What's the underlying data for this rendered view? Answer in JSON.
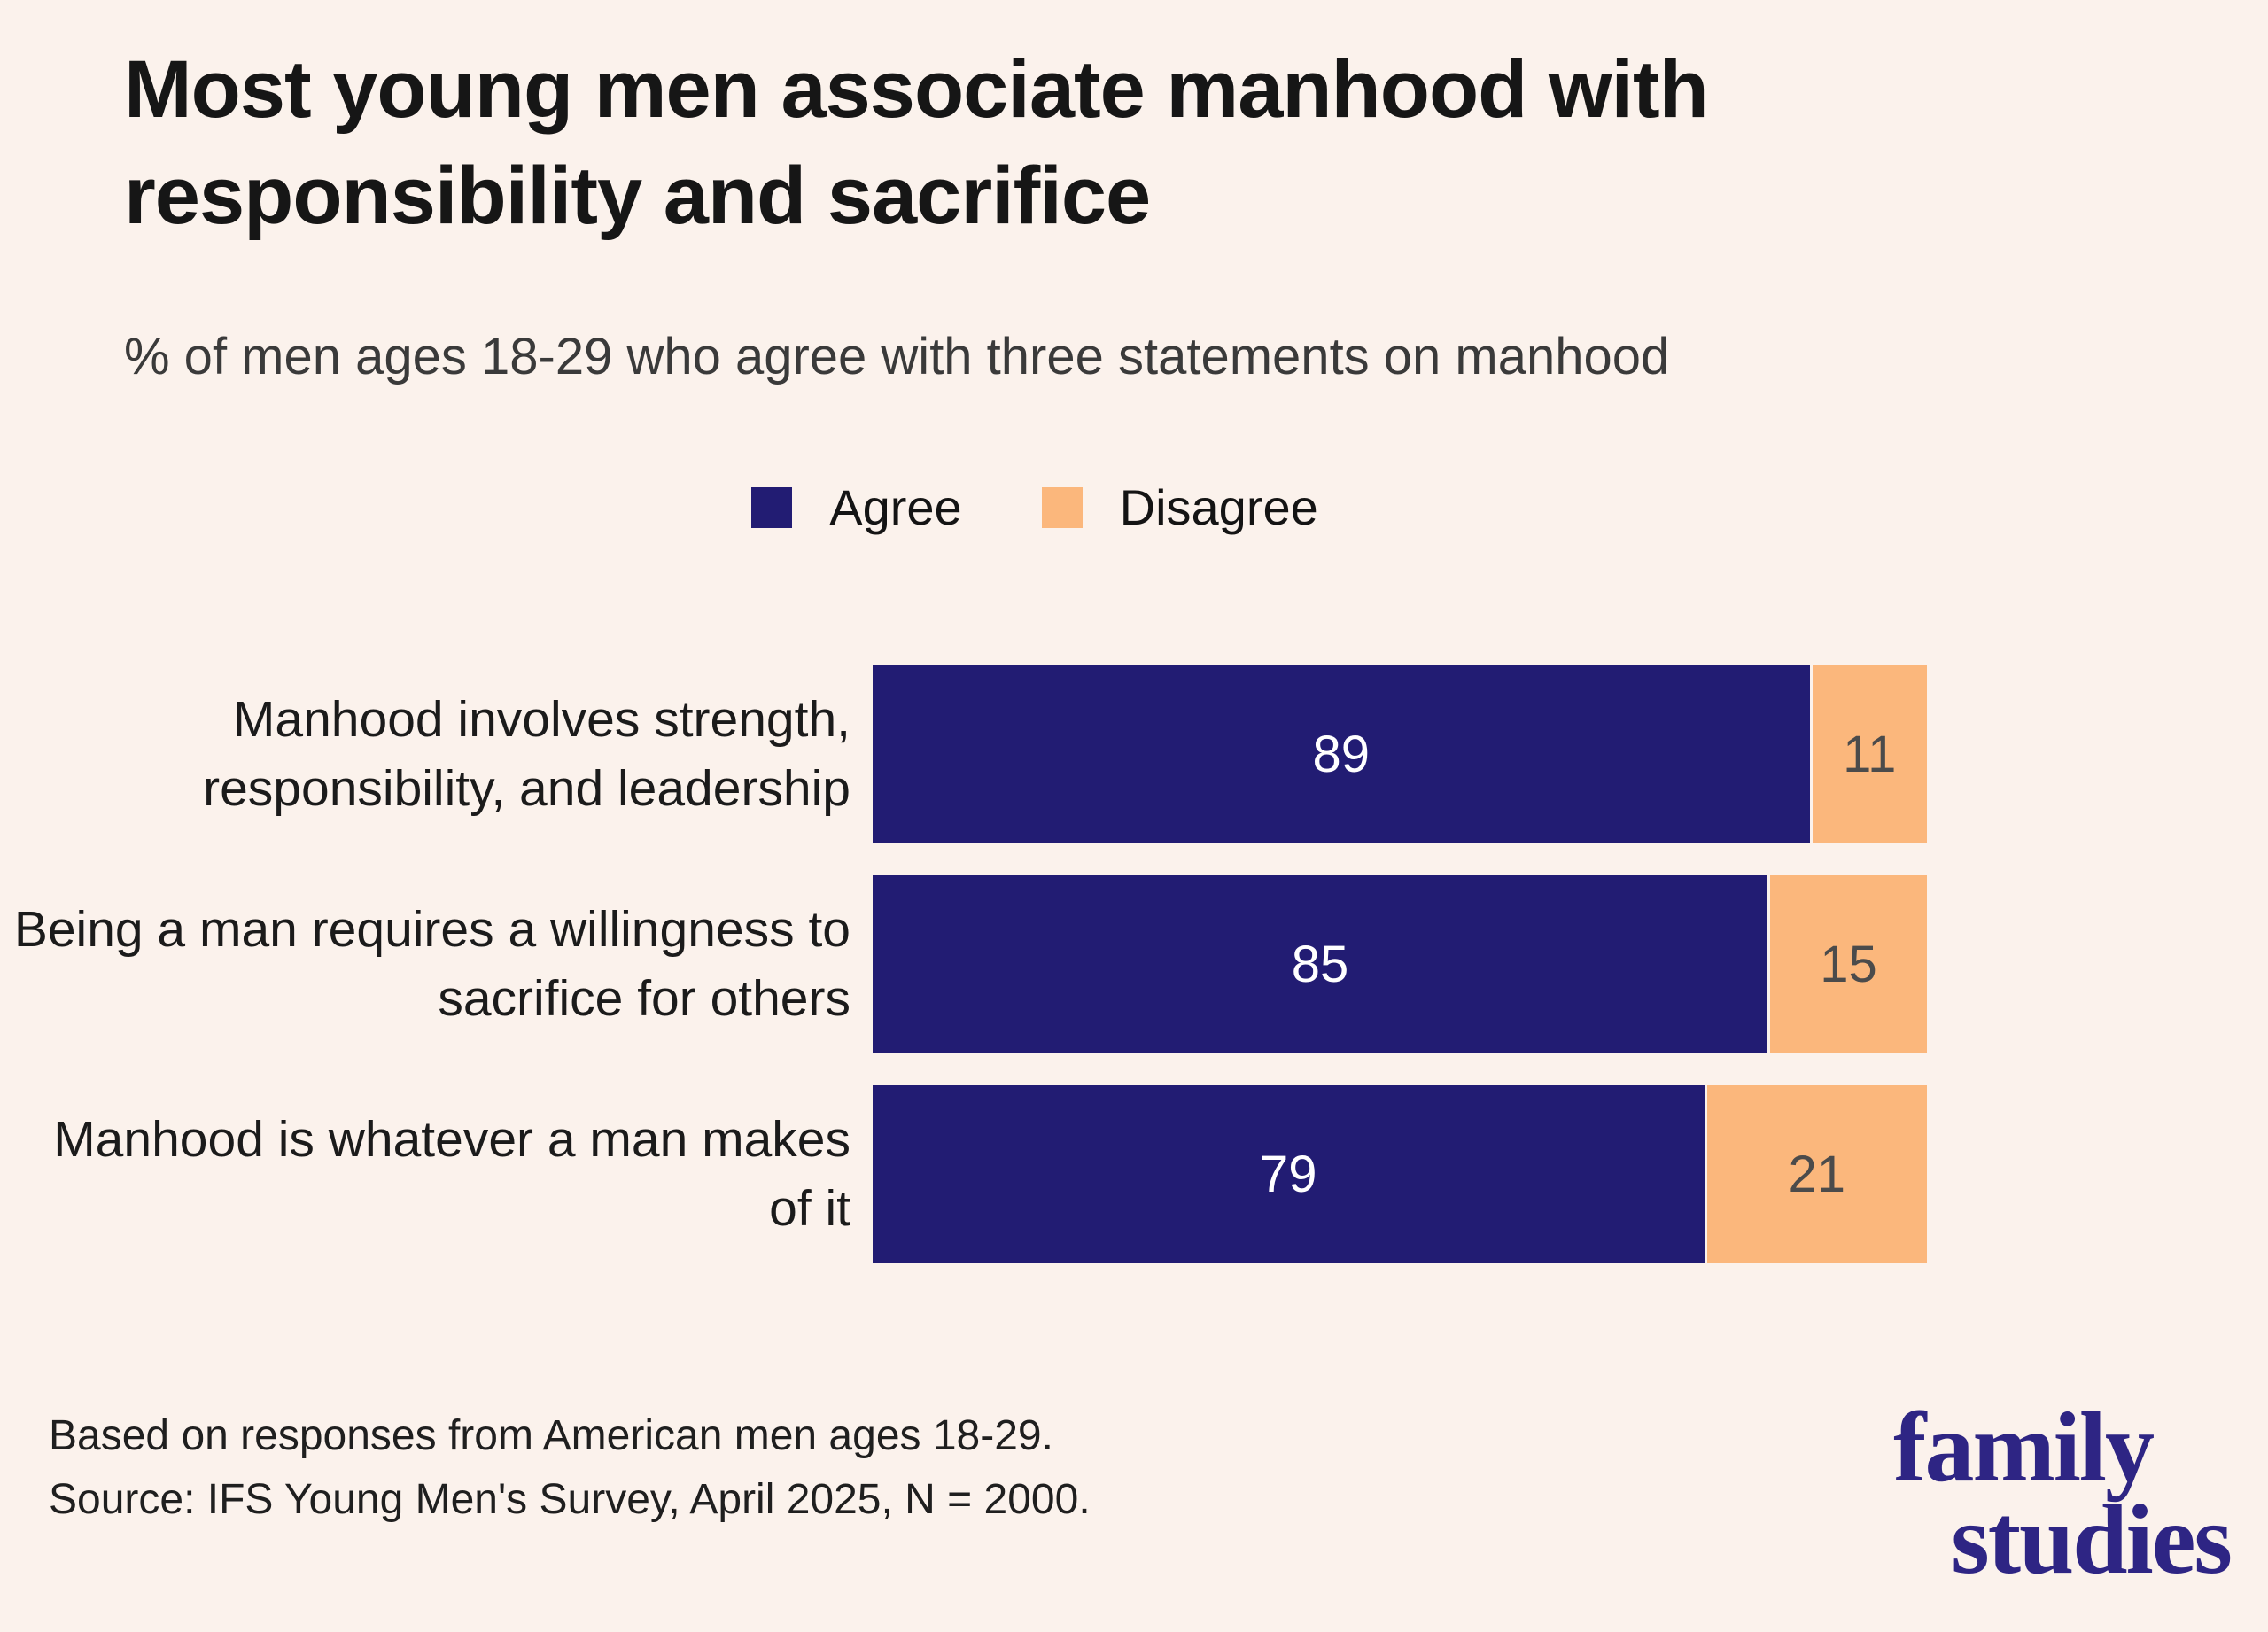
{
  "title": "Most young men associate manhood with responsibility and sacrifice",
  "subtitle": "% of men ages 18-29 who agree with three statements on manhood",
  "legend": {
    "agree_label": "Agree",
    "disagree_label": "Disagree"
  },
  "colors": {
    "background": "#fbf2ec",
    "agree": "#221c73",
    "disagree": "#fbb77c",
    "logo": "#2e2584",
    "agree_value_text": "#ffffff",
    "disagree_value_text": "#4b4b4b"
  },
  "chart_data": {
    "type": "bar",
    "orientation": "horizontal",
    "stacked": true,
    "categories": [
      "Manhood involves strength, responsibility, and leadership",
      "Being a man requires a willingness to sacrifice for others",
      "Manhood is whatever a man makes of it"
    ],
    "series": [
      {
        "name": "Agree",
        "values": [
          89,
          85,
          79
        ]
      },
      {
        "name": "Disagree",
        "values": [
          11,
          15,
          21
        ]
      }
    ],
    "xlim": [
      0,
      100
    ],
    "value_labels": "shown inside segments",
    "legend_position": "top-center",
    "grid": false
  },
  "footer": {
    "line1": "Based on responses from American men ages 18-29.",
    "line2": "Source: IFS Young Men's Survey, April 2025, N = 2000."
  },
  "logo": {
    "line1": "family",
    "line2": "studies"
  }
}
